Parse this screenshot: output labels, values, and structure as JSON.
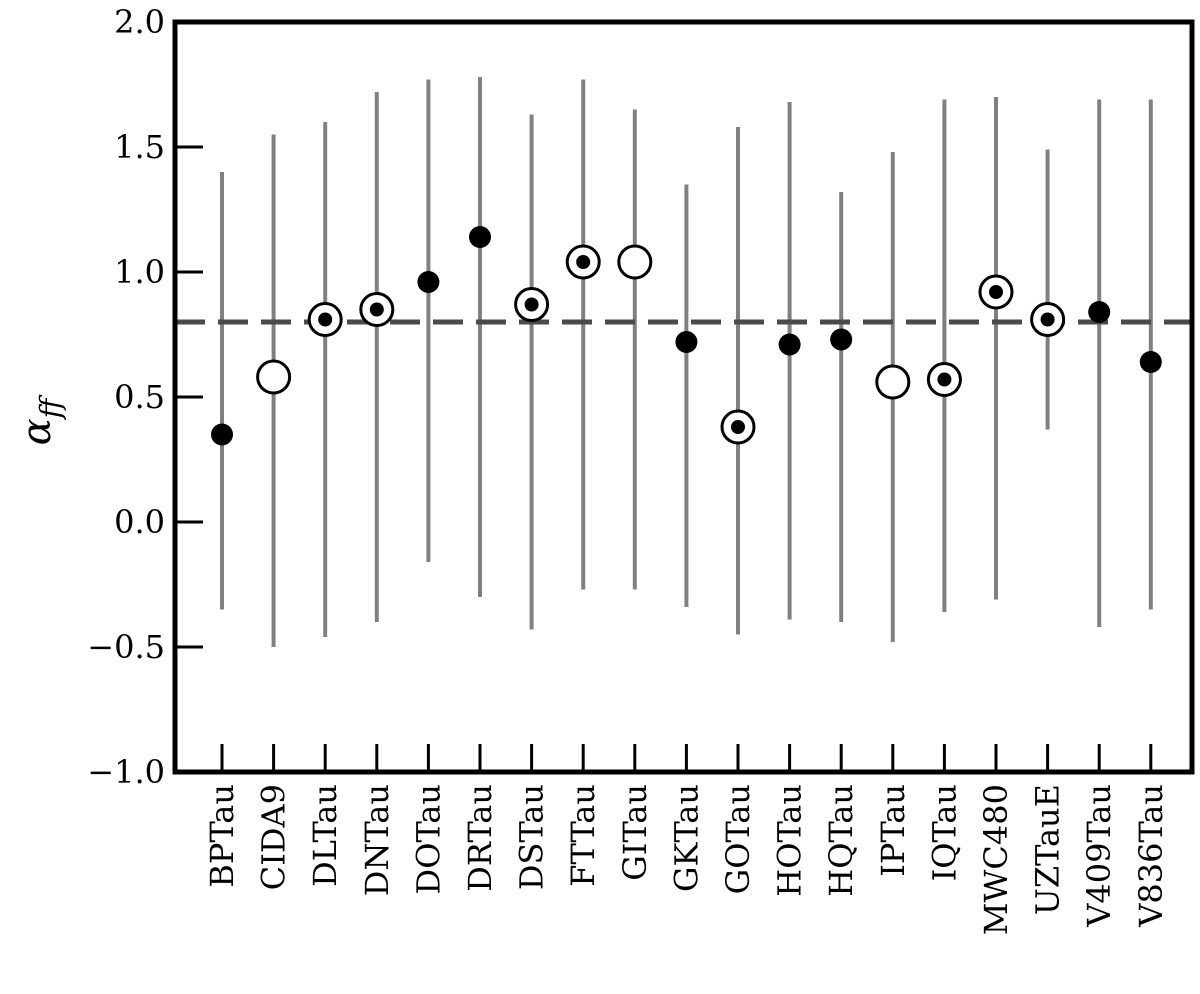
{
  "chart_data": {
    "type": "scatter",
    "ylabel": "α",
    "ylabel_subscript": "ff",
    "ylim": [
      -1.0,
      2.0
    ],
    "yticks": [
      -1.0,
      -0.5,
      0.0,
      0.5,
      1.0,
      1.5,
      2.0
    ],
    "ytick_labels": [
      "−1.0",
      "−0.5",
      "0.0",
      "0.5",
      "1.0",
      "1.5",
      "2.0"
    ],
    "reference_line": 0.8,
    "colors": {
      "marker": "#000000",
      "errorbar": "#808080",
      "reference_line": "#4a4a4a"
    },
    "marker_legend": [
      "filled",
      "open",
      "ringed"
    ],
    "categories": [
      "BPTau",
      "CIDA9",
      "DLTau",
      "DNTau",
      "DOTau",
      "DRTau",
      "DSTau",
      "FTTau",
      "GITau",
      "GKTau",
      "GOTau",
      "HOTau",
      "HQTau",
      "IPTau",
      "IQTau",
      "MWC480",
      "UZTauE",
      "V409Tau",
      "V836Tau"
    ],
    "values": [
      0.35,
      0.58,
      0.81,
      0.85,
      0.96,
      1.14,
      0.87,
      1.04,
      1.04,
      0.72,
      0.38,
      0.71,
      0.73,
      0.56,
      0.57,
      0.92,
      0.81,
      0.84,
      0.64
    ],
    "err_low": [
      -0.35,
      -0.5,
      -0.46,
      -0.4,
      -0.16,
      -0.3,
      -0.43,
      -0.27,
      -0.27,
      -0.34,
      -0.45,
      -0.39,
      -0.4,
      -0.48,
      -0.36,
      -0.31,
      0.37,
      -0.42,
      -0.35
    ],
    "err_high": [
      1.4,
      1.55,
      1.6,
      1.72,
      1.77,
      1.78,
      1.63,
      1.77,
      1.65,
      1.35,
      1.58,
      1.68,
      1.32,
      1.48,
      1.69,
      1.7,
      1.49,
      1.69,
      1.69
    ],
    "markers": [
      "filled",
      "open",
      "ringed",
      "ringed",
      "filled",
      "filled",
      "ringed",
      "ringed",
      "open",
      "filled",
      "ringed",
      "filled",
      "filled",
      "open",
      "ringed",
      "ringed",
      "ringed",
      "filled",
      "filled"
    ]
  }
}
